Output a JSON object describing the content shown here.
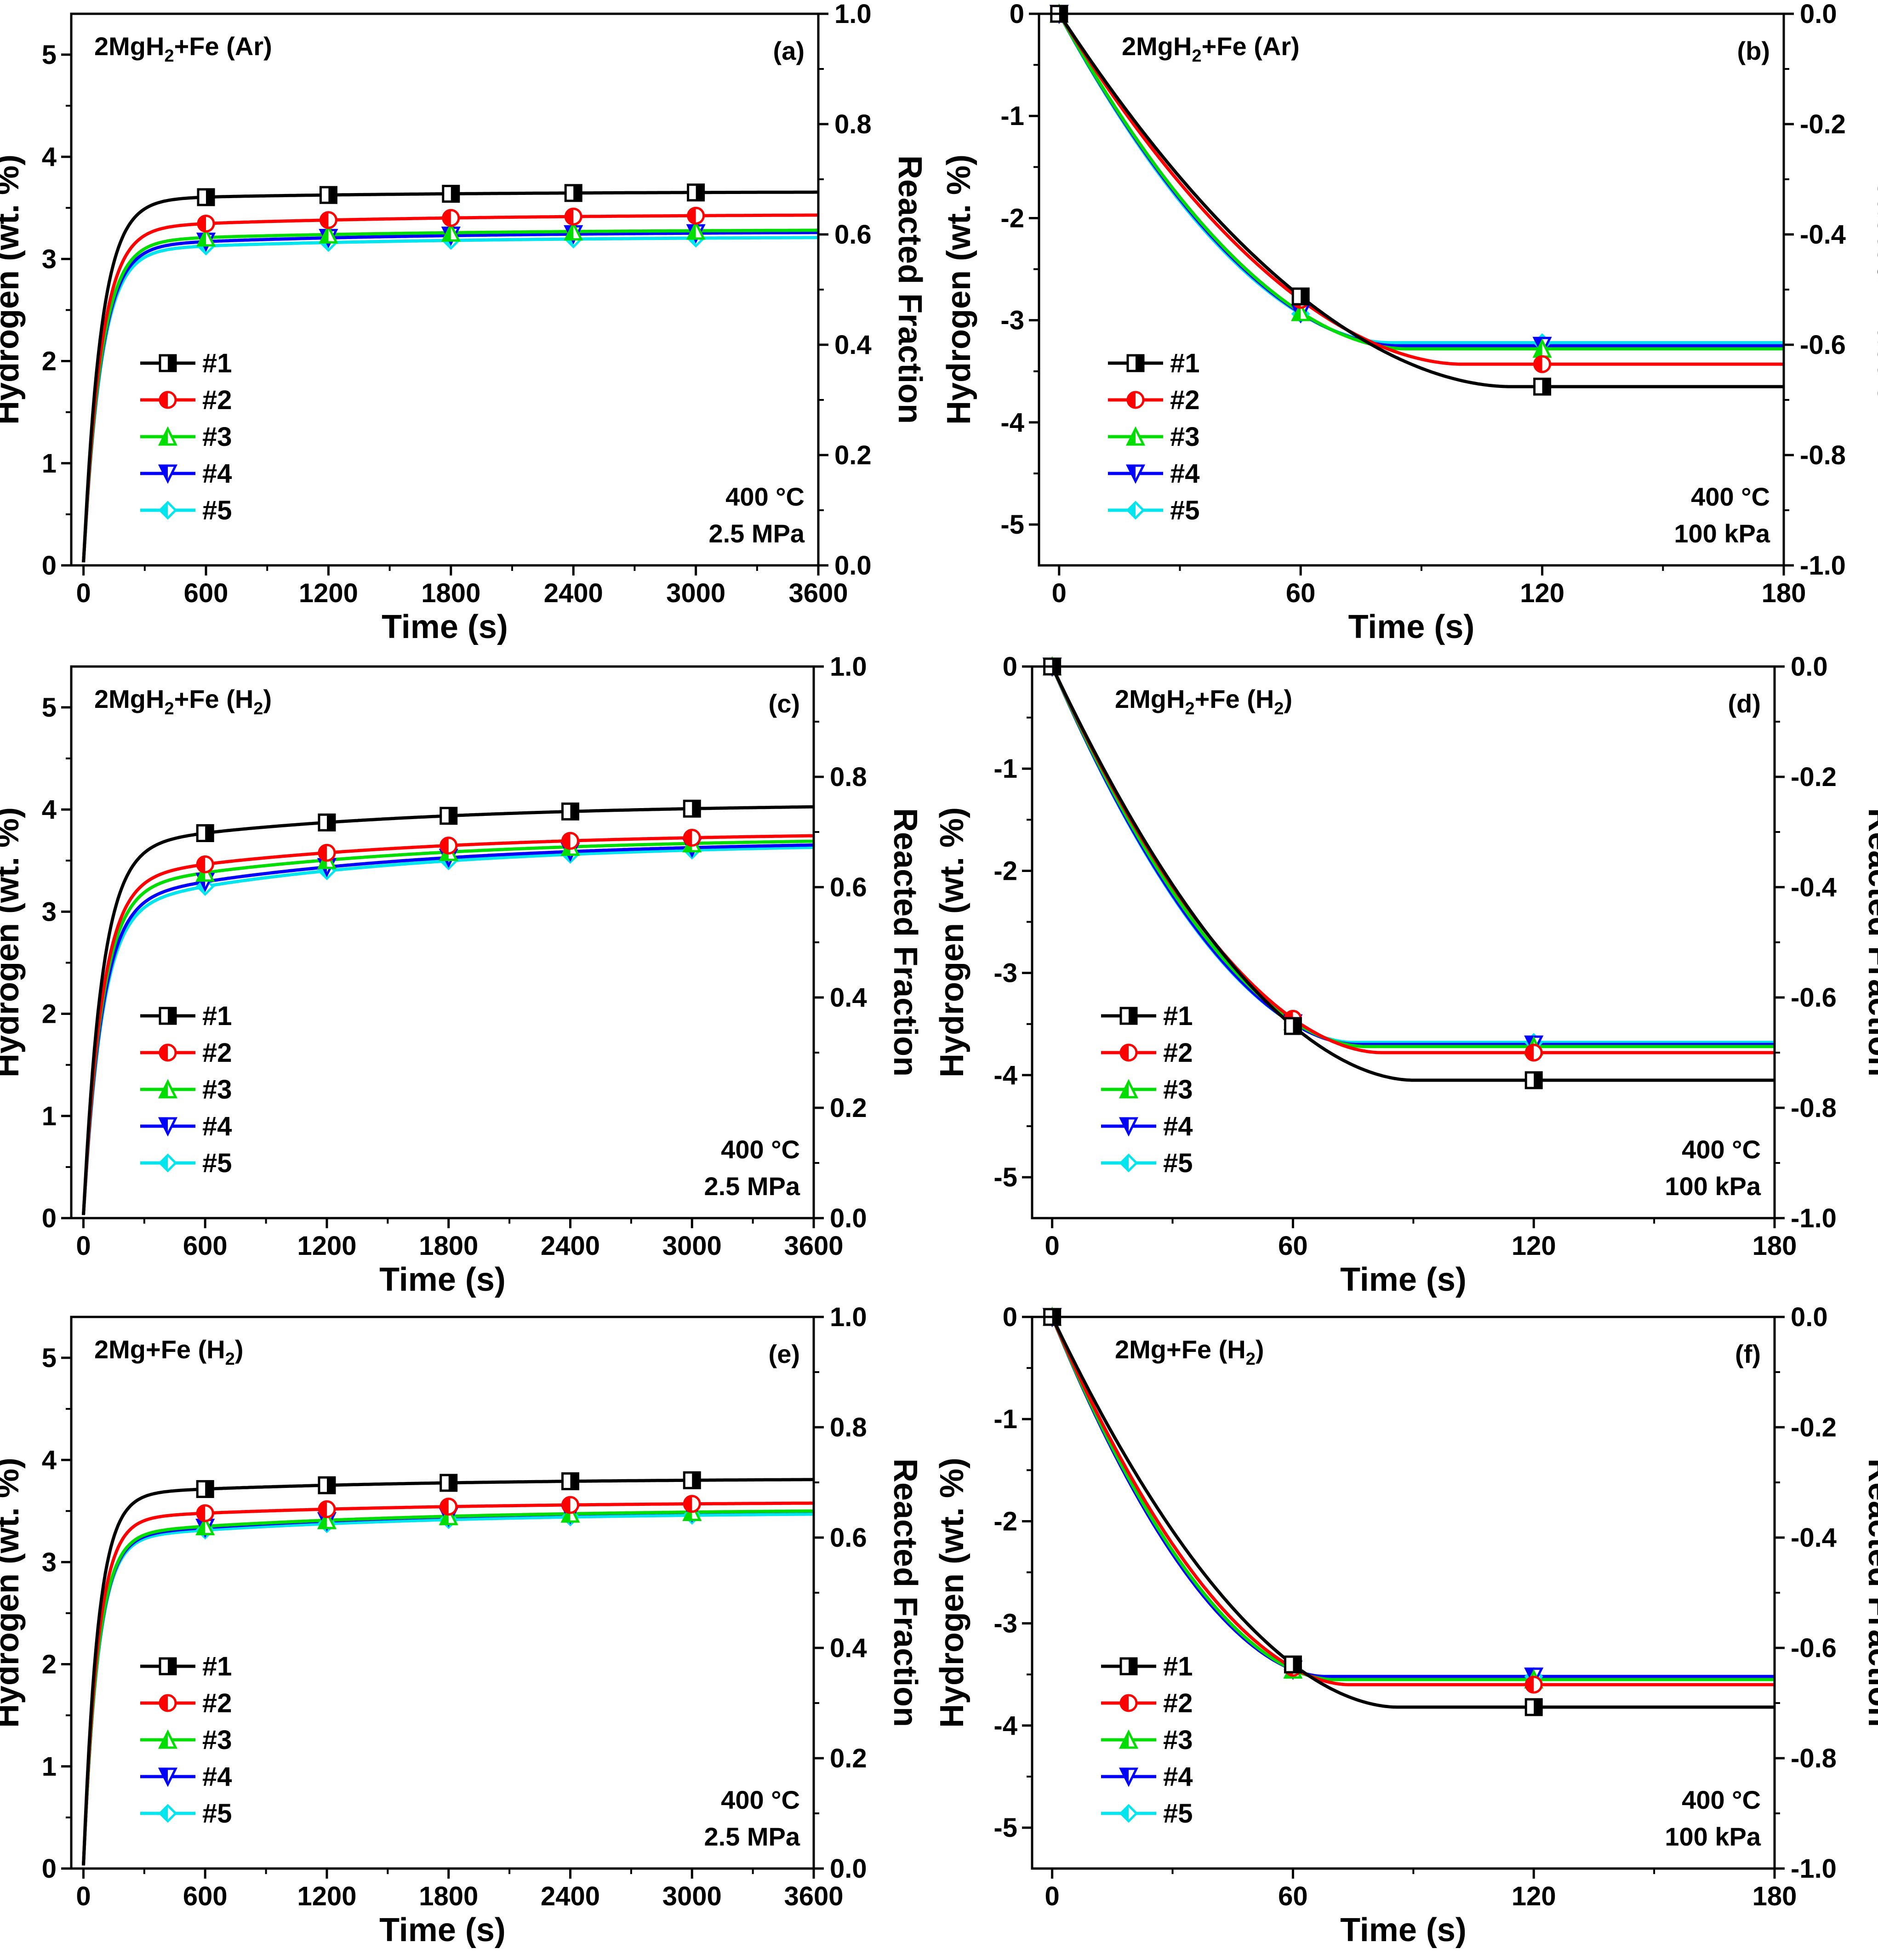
{
  "figure": {
    "width_note": "six-panel hydrogen absorption/desorption kinetics figure"
  },
  "series_style": [
    {
      "name": "#1",
      "color": "#000000",
      "marker": "half-square"
    },
    {
      "name": "#2",
      "color": "#ff0000",
      "marker": "half-circle"
    },
    {
      "name": "#3",
      "color": "#00dd00",
      "marker": "half-triangle-up"
    },
    {
      "name": "#4",
      "color": "#0000ff",
      "marker": "half-triangle-down"
    },
    {
      "name": "#5",
      "color": "#00e5ee",
      "marker": "half-diamond"
    }
  ],
  "chart_data": [
    {
      "type": "line",
      "panel": "(a)",
      "title": "2MgH2+Fe (Ar)",
      "title_parts": {
        "a": "2MgH",
        "sub": "2",
        "b": "+Fe (Ar)"
      },
      "conditions": [
        "400 °C",
        "2.5 MPa"
      ],
      "xlabel": "Time (s)",
      "ylabel": "Hydrogen (wt. %)",
      "y2label": "Reacted Fraction",
      "xlim": [
        -60,
        3600
      ],
      "ylim": [
        0,
        5.4
      ],
      "y2lim": [
        0,
        1.0
      ],
      "xticks": [
        0,
        600,
        1200,
        1800,
        2400,
        3000,
        3600
      ],
      "yticks": [
        0,
        1,
        2,
        3,
        4,
        5
      ],
      "y2ticks": [
        "0.0",
        "0.2",
        "0.4",
        "0.6",
        "0.8",
        "1.0"
      ],
      "kinetics": "absorption",
      "tau": 85,
      "x_end": 3600,
      "marker_x": [
        600,
        1200,
        1800,
        2400,
        3000
      ],
      "legend": [
        "#1",
        "#2",
        "#3",
        "#4",
        "#5"
      ],
      "series": [
        {
          "name": "#1",
          "plateau": 3.58,
          "drift": 0.08
        },
        {
          "name": "#2",
          "plateau": 3.3,
          "drift": 0.14
        },
        {
          "name": "#3",
          "plateau": 3.17,
          "drift": 0.12
        },
        {
          "name": "#4",
          "plateau": 3.12,
          "drift": 0.15
        },
        {
          "name": "#5",
          "plateau": 3.08,
          "drift": 0.14
        }
      ]
    },
    {
      "type": "line",
      "panel": "(b)",
      "title": "2MgH2+Fe (Ar)",
      "title_parts": {
        "a": "2MgH",
        "sub": "2",
        "b": "+Fe (Ar)"
      },
      "conditions": [
        "400 °C",
        "100 kPa"
      ],
      "xlabel": "Time (s)",
      "ylabel": "Hydrogen (wt. %)",
      "y2label": "Reacted Fraction",
      "xlim": [
        -5,
        180
      ],
      "ylim": [
        -5.4,
        0
      ],
      "y2lim": [
        -1.0,
        0
      ],
      "xticks": [
        0,
        60,
        120,
        180
      ],
      "yticks": [
        0,
        -1,
        -2,
        -3,
        -4,
        -5
      ],
      "y2ticks": [
        "0.0",
        "-0.2",
        "-0.4",
        "-0.6",
        "-0.8",
        "-1.0"
      ],
      "kinetics": "desorption",
      "x_end": 180,
      "marker_x": [
        0,
        60,
        120
      ],
      "legend": [
        "#1",
        "#2",
        "#3",
        "#4",
        "#5"
      ],
      "series": [
        {
          "name": "#1",
          "final": -3.65,
          "t_end": 112
        },
        {
          "name": "#2",
          "final": -3.43,
          "t_end": 100
        },
        {
          "name": "#3",
          "final": -3.28,
          "t_end": 86
        },
        {
          "name": "#4",
          "final": -3.25,
          "t_end": 84
        },
        {
          "name": "#5",
          "final": -3.22,
          "t_end": 82
        }
      ]
    },
    {
      "type": "line",
      "panel": "(c)",
      "title": "2MgH2+Fe (H2)",
      "title_parts": {
        "a": "2MgH",
        "sub": "2",
        "b": "+Fe (H",
        "sub2": "2",
        "c": ")"
      },
      "conditions": [
        "400 °C",
        "2.5 MPa"
      ],
      "xlabel": "Time (s)",
      "ylabel": "Hydrogen (wt. %)",
      "y2label": "Reacted Fraction",
      "xlim": [
        -60,
        3600
      ],
      "ylim": [
        0,
        5.4
      ],
      "y2lim": [
        0,
        1.0
      ],
      "xticks": [
        0,
        600,
        1200,
        1800,
        2400,
        3000,
        3600
      ],
      "yticks": [
        0,
        1,
        2,
        3,
        4,
        5
      ],
      "y2ticks": [
        "0.0",
        "0.2",
        "0.4",
        "0.6",
        "0.8",
        "1.0"
      ],
      "kinetics": "absorption",
      "tau": 90,
      "x_end": 3600,
      "marker_x": [
        600,
        1200,
        1800,
        2400,
        3000
      ],
      "legend": [
        "#1",
        "#2",
        "#3",
        "#4",
        "#5"
      ],
      "series": [
        {
          "name": "#1",
          "plateau": 3.62,
          "drift": 0.44
        },
        {
          "name": "#2",
          "plateau": 3.3,
          "drift": 0.48
        },
        {
          "name": "#3",
          "plateau": 3.2,
          "drift": 0.53
        },
        {
          "name": "#4",
          "plateau": 3.08,
          "drift": 0.62
        },
        {
          "name": "#5",
          "plateau": 3.02,
          "drift": 0.66
        }
      ]
    },
    {
      "type": "line",
      "panel": "(d)",
      "title": "2MgH2+Fe (H2)",
      "title_parts": {
        "a": "2MgH",
        "sub": "2",
        "b": "+Fe (H",
        "sub2": "2",
        "c": ")"
      },
      "conditions": [
        "400 °C",
        "100 kPa"
      ],
      "xlabel": "Time (s)",
      "ylabel": "Hydrogen (wt. %)",
      "y2label": "Reacted Fraction",
      "xlim": [
        -5,
        180
      ],
      "ylim": [
        -5.4,
        0
      ],
      "y2lim": [
        -1.0,
        0
      ],
      "xticks": [
        0,
        60,
        120,
        180
      ],
      "yticks": [
        0,
        -1,
        -2,
        -3,
        -4,
        -5
      ],
      "y2ticks": [
        "0.0",
        "-0.2",
        "-0.4",
        "-0.6",
        "-0.8",
        "-1.0"
      ],
      "kinetics": "desorption",
      "x_end": 180,
      "marker_x": [
        0,
        60,
        120
      ],
      "legend": [
        "#1",
        "#2",
        "#3",
        "#4",
        "#5"
      ],
      "series": [
        {
          "name": "#1",
          "final": -4.05,
          "t_end": 90
        },
        {
          "name": "#2",
          "final": -3.78,
          "t_end": 82
        },
        {
          "name": "#3",
          "final": -3.72,
          "t_end": 78
        },
        {
          "name": "#4",
          "final": -3.7,
          "t_end": 76
        },
        {
          "name": "#5",
          "final": -3.68,
          "t_end": 75
        }
      ]
    },
    {
      "type": "line",
      "panel": "(e)",
      "title": "2Mg+Fe (H2)",
      "title_parts": {
        "a": "2Mg+Fe (H",
        "sub": "2",
        "b": ")"
      },
      "conditions": [
        "400 °C",
        "2.5 MPa"
      ],
      "xlabel": "Time (s)",
      "ylabel": "Hydrogen (wt. %)",
      "y2label": "Reacted Fraction",
      "xlim": [
        -60,
        3600
      ],
      "ylim": [
        0,
        5.4
      ],
      "y2lim": [
        0,
        1.0
      ],
      "xticks": [
        0,
        600,
        1200,
        1800,
        2400,
        3000,
        3600
      ],
      "yticks": [
        0,
        1,
        2,
        3,
        4,
        5
      ],
      "y2ticks": [
        "0.0",
        "0.2",
        "0.4",
        "0.6",
        "0.8",
        "1.0"
      ],
      "kinetics": "absorption",
      "tau": 70,
      "x_end": 3600,
      "marker_x": [
        600,
        1200,
        1800,
        2400,
        3000
      ],
      "legend": [
        "#1",
        "#2",
        "#3",
        "#4",
        "#5"
      ],
      "series": [
        {
          "name": "#1",
          "plateau": 3.66,
          "drift": 0.16
        },
        {
          "name": "#2",
          "plateau": 3.42,
          "drift": 0.17
        },
        {
          "name": "#3",
          "plateau": 3.26,
          "drift": 0.26
        },
        {
          "name": "#4",
          "plateau": 3.24,
          "drift": 0.28
        },
        {
          "name": "#5",
          "plateau": 3.22,
          "drift": 0.27
        }
      ]
    },
    {
      "type": "line",
      "panel": "(f)",
      "title": "2Mg+Fe (H2)",
      "title_parts": {
        "a": "2Mg+Fe (H",
        "sub": "2",
        "b": ")"
      },
      "conditions": [
        "400 °C",
        "100 kPa"
      ],
      "xlabel": "Time (s)",
      "ylabel": "Hydrogen (wt. %)",
      "y2label": "Reacted Fraction",
      "xlim": [
        -5,
        180
      ],
      "ylim": [
        -5.4,
        0
      ],
      "y2lim": [
        -1.0,
        0
      ],
      "xticks": [
        0,
        60,
        120,
        180
      ],
      "yticks": [
        0,
        -1,
        -2,
        -3,
        -4,
        -5
      ],
      "y2ticks": [
        "0.0",
        "-0.2",
        "-0.4",
        "-0.6",
        "-0.8",
        "-1.0"
      ],
      "kinetics": "desorption",
      "x_end": 180,
      "marker_x": [
        0,
        60,
        120
      ],
      "legend": [
        "#1",
        "#2",
        "#3",
        "#4",
        "#5"
      ],
      "series": [
        {
          "name": "#1",
          "final": -3.82,
          "t_end": 86
        },
        {
          "name": "#2",
          "final": -3.6,
          "t_end": 74
        },
        {
          "name": "#3",
          "final": -3.55,
          "t_end": 70
        },
        {
          "name": "#4",
          "final": -3.52,
          "t_end": 68
        },
        {
          "name": "#5",
          "final": -3.52,
          "t_end": 68
        }
      ]
    }
  ]
}
